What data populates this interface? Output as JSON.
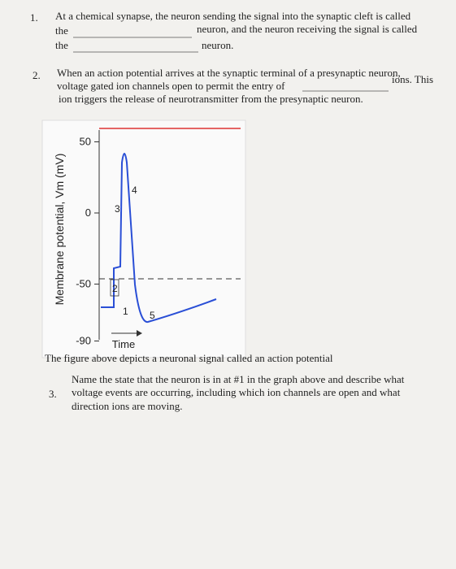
{
  "questions": [
    {
      "number": "1.",
      "lines": [
        "At a chemical synapse, the neuron sending the signal into the synaptic cleft is called",
        "the",
        "neuron, and the neuron receiving the signal is called",
        "the",
        "neuron."
      ]
    },
    {
      "number": "2.",
      "lines": [
        "When an action potential arrives at the synaptic terminal of a presynaptic neuron,",
        "voltage gated ion channels open to permit the entry of",
        "ions. This",
        "ion triggers the release of neurotransmitter from the presynaptic neuron."
      ]
    },
    {
      "number": "3.",
      "lines": [
        "Name the state that the neuron is in at #1 in the graph above and describe what",
        "voltage events are occurring, including which ion channels are open and what",
        "direction ions are moving."
      ]
    }
  ],
  "figure": {
    "y_label": "Membrane potential, Vm (mV)",
    "yticks": [
      50,
      0,
      -50,
      -90
    ],
    "x_label": "Time",
    "phase_labels": [
      "1",
      "2",
      "3",
      "4",
      "5"
    ]
  },
  "caption": "The figure above depicts a neuronal signal called an action potential"
}
